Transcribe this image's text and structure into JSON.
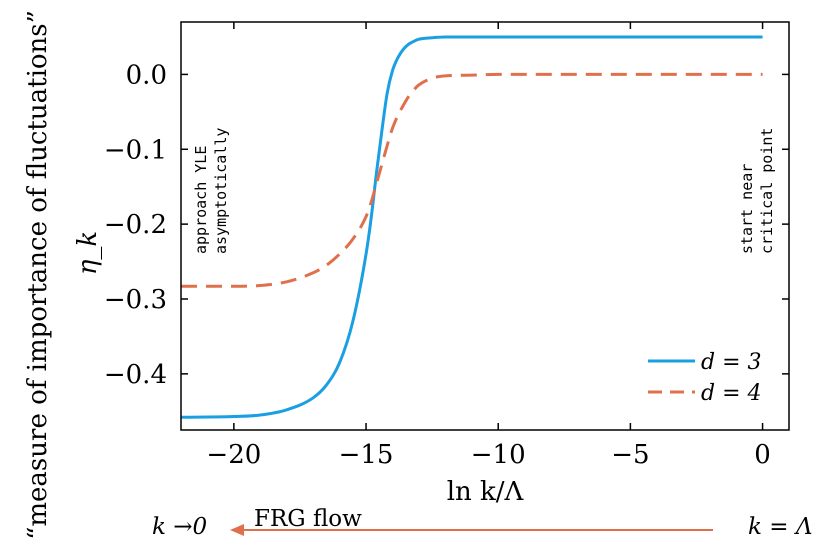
{
  "chart_data": {
    "type": "line",
    "xlabel": "ln k/Λ",
    "ylabel_outer": "“measure of importance of fluctuations”",
    "ylabel": "η_k",
    "xlim": [
      -22,
      1
    ],
    "ylim": [
      -0.475,
      0.07
    ],
    "xticks": [
      -20,
      -15,
      -10,
      -5,
      0
    ],
    "xtick_labels": [
      "−20",
      "−15",
      "−10",
      "−5",
      "0"
    ],
    "yticks": [
      0.0,
      -0.1,
      -0.2,
      -0.3,
      -0.4
    ],
    "ytick_labels": [
      "0.0",
      "−0.1",
      "−0.2",
      "−0.3",
      "−0.4"
    ],
    "legend_position": "bottom-right",
    "series": [
      {
        "name": "d = 3",
        "color": "#1a9fe3",
        "style": "solid",
        "x": [
          -22,
          -20,
          -19,
          -18,
          -17,
          -16.5,
          -16,
          -15.5,
          -15,
          -14.8,
          -14.6,
          -14.4,
          -14.2,
          -14,
          -13.8,
          -13.6,
          -13.4,
          -13.2,
          -13,
          -12.5,
          -12,
          -11,
          -10,
          -5,
          0
        ],
        "y": [
          -0.458,
          -0.457,
          -0.455,
          -0.448,
          -0.432,
          -0.415,
          -0.385,
          -0.33,
          -0.24,
          -0.19,
          -0.13,
          -0.075,
          -0.025,
          0.005,
          0.022,
          0.033,
          0.04,
          0.044,
          0.047,
          0.049,
          0.05,
          0.05,
          0.05,
          0.05,
          0.05
        ]
      },
      {
        "name": "d = 4",
        "color": "#e0704c",
        "style": "dashed",
        "x": [
          -22,
          -20,
          -19,
          -18,
          -17,
          -16.5,
          -16,
          -15.5,
          -15,
          -14.8,
          -14.6,
          -14.4,
          -14.2,
          -14,
          -13.8,
          -13.6,
          -13.4,
          -13.2,
          -13,
          -12.5,
          -12,
          -11,
          -10,
          -5,
          0
        ],
        "y": [
          -0.283,
          -0.283,
          -0.282,
          -0.277,
          -0.265,
          -0.255,
          -0.24,
          -0.22,
          -0.19,
          -0.17,
          -0.145,
          -0.12,
          -0.095,
          -0.072,
          -0.055,
          -0.042,
          -0.03,
          -0.021,
          -0.014,
          -0.005,
          -0.002,
          -0.001,
          0.0,
          0.0,
          0.0
        ]
      }
    ],
    "annotations": {
      "left_line1": "approach YLE",
      "left_line2": "asymptotically",
      "right_line1": "start near",
      "right_line2": "critical point"
    }
  },
  "flow": {
    "left_label": "k →0",
    "arrow_label": "FRG flow",
    "right_label": "k = Λ",
    "arrow_color": "#e0704c"
  }
}
